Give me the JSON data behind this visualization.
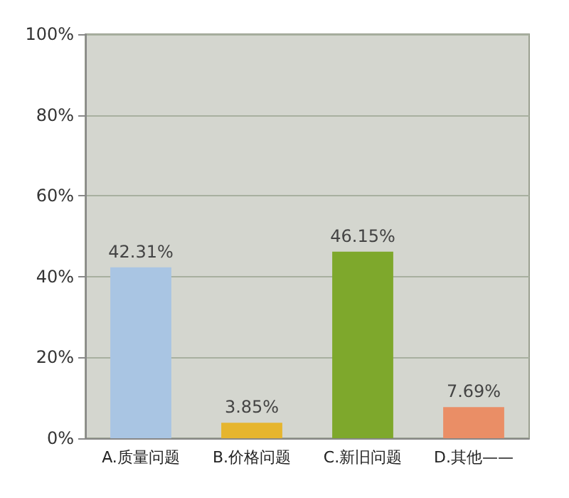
{
  "chart_data": {
    "type": "bar",
    "categories": [
      "A.质量问题",
      "B.价格问题",
      "C.新旧问题",
      "D.其他——"
    ],
    "values": [
      42.31,
      3.85,
      46.15,
      7.69
    ],
    "colors": [
      "#a9c5e3",
      "#e6b52e",
      "#7ea82c",
      "#ea8e66"
    ],
    "value_labels": [
      "42.31%",
      "3.85%",
      "46.15%",
      "7.69%"
    ],
    "ylim": [
      0,
      100
    ],
    "yticks": [
      {
        "value": 0,
        "label": "0%"
      },
      {
        "value": 20,
        "label": "20%"
      },
      {
        "value": 40,
        "label": "40%"
      },
      {
        "value": 60,
        "label": "60%"
      },
      {
        "value": 80,
        "label": "80%"
      },
      {
        "value": 100,
        "label": "100%"
      }
    ],
    "grid": "y"
  }
}
